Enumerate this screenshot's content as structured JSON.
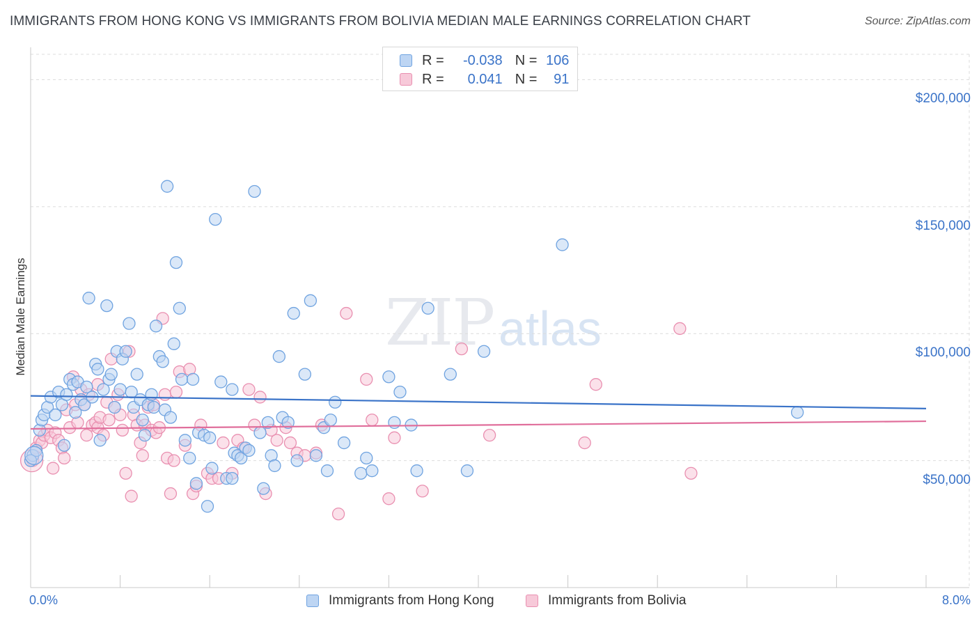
{
  "title": "IMMIGRANTS FROM HONG KONG VS IMMIGRANTS FROM BOLIVIA MEDIAN MALE EARNINGS CORRELATION CHART",
  "source": "Source: ZipAtlas.com",
  "watermark": {
    "zip": "ZIP",
    "atlas": "atlas"
  },
  "legend": {
    "rows": [
      {
        "r_label": "R =",
        "r_value": "-0.038",
        "n_label": "N =",
        "n_value": "106",
        "color": "#6fa3e0",
        "fill": "#bdd5f3"
      },
      {
        "r_label": "R =",
        "r_value": "0.041",
        "n_label": "N =",
        "n_value": "91",
        "color": "#e98fb0",
        "fill": "#f7c9d9"
      }
    ]
  },
  "colors": {
    "blue_line": "#3a73c8",
    "pink_line": "#e06e9b",
    "blue_stroke": "#6fa3e0",
    "blue_fill": "#bdd5f3",
    "pink_stroke": "#e98fb0",
    "pink_fill": "#f7c9d9",
    "grid": "#dcdcdc"
  },
  "chart_data": {
    "type": "scatter",
    "title": "IMMIGRANTS FROM HONG KONG VS IMMIGRANTS FROM BOLIVIA MEDIAN MALE EARNINGS CORRELATION CHART",
    "xlabel": "",
    "ylabel": "Median Male Earnings",
    "xlim": [
      0,
      8
    ],
    "ylim": [
      0,
      210000
    ],
    "x_tick_labels": [
      "0.0%",
      "8.0%"
    ],
    "y_tick_labels": [
      "$50,000",
      "$100,000",
      "$150,000",
      "$200,000"
    ],
    "y_ticks": [
      50000,
      100000,
      150000,
      200000
    ],
    "grid": true,
    "legend_position": "top-center",
    "series": [
      {
        "name": "Immigrants from Hong Kong",
        "trend": {
          "x": [
            0,
            8
          ],
          "y": [
            75500,
            70500
          ]
        },
        "points": [
          [
            0.02,
            52000
          ],
          [
            0.05,
            54000
          ],
          [
            0.08,
            62000
          ],
          [
            0.1,
            66000
          ],
          [
            0.12,
            68000
          ],
          [
            0.15,
            71000
          ],
          [
            0.18,
            75000
          ],
          [
            0.22,
            68000
          ],
          [
            0.25,
            77000
          ],
          [
            0.28,
            72000
          ],
          [
            0.3,
            56000
          ],
          [
            0.32,
            76000
          ],
          [
            0.35,
            82000
          ],
          [
            0.38,
            80000
          ],
          [
            0.4,
            69000
          ],
          [
            0.42,
            81000
          ],
          [
            0.45,
            74000
          ],
          [
            0.48,
            72000
          ],
          [
            0.5,
            79000
          ],
          [
            0.52,
            114000
          ],
          [
            0.55,
            75000
          ],
          [
            0.58,
            88000
          ],
          [
            0.6,
            86000
          ],
          [
            0.62,
            58000
          ],
          [
            0.65,
            78000
          ],
          [
            0.68,
            111000
          ],
          [
            0.7,
            82000
          ],
          [
            0.72,
            84000
          ],
          [
            0.75,
            71000
          ],
          [
            0.77,
            93000
          ],
          [
            0.8,
            78000
          ],
          [
            0.82,
            90000
          ],
          [
            0.85,
            93000
          ],
          [
            0.88,
            104000
          ],
          [
            0.9,
            77000
          ],
          [
            0.92,
            71000
          ],
          [
            0.95,
            84000
          ],
          [
            0.98,
            74000
          ],
          [
            1.0,
            66000
          ],
          [
            1.02,
            60000
          ],
          [
            1.05,
            72000
          ],
          [
            1.08,
            76000
          ],
          [
            1.1,
            71000
          ],
          [
            1.12,
            103000
          ],
          [
            1.15,
            91000
          ],
          [
            1.18,
            89000
          ],
          [
            1.2,
            70000
          ],
          [
            1.22,
            158000
          ],
          [
            1.25,
            67000
          ],
          [
            1.28,
            96000
          ],
          [
            1.3,
            128000
          ],
          [
            1.33,
            110000
          ],
          [
            1.35,
            82000
          ],
          [
            1.38,
            58000
          ],
          [
            1.42,
            51000
          ],
          [
            1.45,
            82000
          ],
          [
            1.48,
            41000
          ],
          [
            1.5,
            61000
          ],
          [
            1.55,
            60000
          ],
          [
            1.58,
            32000
          ],
          [
            1.6,
            59000
          ],
          [
            1.62,
            47000
          ],
          [
            1.65,
            145000
          ],
          [
            1.7,
            81000
          ],
          [
            1.75,
            43000
          ],
          [
            1.8,
            78000
          ],
          [
            1.82,
            53000
          ],
          [
            1.85,
            52000
          ],
          [
            1.88,
            51000
          ],
          [
            1.92,
            55000
          ],
          [
            1.95,
            54000
          ],
          [
            2.0,
            156000
          ],
          [
            2.05,
            61000
          ],
          [
            2.08,
            39000
          ],
          [
            2.12,
            65000
          ],
          [
            2.15,
            52000
          ],
          [
            2.18,
            48000
          ],
          [
            2.22,
            91000
          ],
          [
            2.25,
            67000
          ],
          [
            2.3,
            65000
          ],
          [
            2.35,
            108000
          ],
          [
            2.38,
            50000
          ],
          [
            2.45,
            84000
          ],
          [
            2.5,
            113000
          ],
          [
            2.55,
            52000
          ],
          [
            2.62,
            63000
          ],
          [
            2.65,
            46000
          ],
          [
            2.68,
            66000
          ],
          [
            2.72,
            73000
          ],
          [
            2.8,
            57000
          ],
          [
            2.95,
            45000
          ],
          [
            3.0,
            51000
          ],
          [
            3.05,
            46000
          ],
          [
            3.2,
            83000
          ],
          [
            3.25,
            65000
          ],
          [
            3.3,
            77000
          ],
          [
            3.4,
            64000
          ],
          [
            3.45,
            46000
          ],
          [
            3.55,
            110000
          ],
          [
            3.75,
            84000
          ],
          [
            3.9,
            46000
          ],
          [
            4.05,
            93000
          ],
          [
            4.75,
            135000
          ],
          [
            6.85,
            69000
          ],
          [
            0.0,
            50000
          ],
          [
            1.8,
            43000
          ]
        ]
      },
      {
        "name": "Immigrants from Bolivia",
        "trend": {
          "x": [
            0,
            8
          ],
          "y": [
            62500,
            65500
          ]
        },
        "points": [
          [
            0.02,
            50000
          ],
          [
            0.05,
            55000
          ],
          [
            0.08,
            58000
          ],
          [
            0.1,
            57000
          ],
          [
            0.12,
            60000
          ],
          [
            0.15,
            62000
          ],
          [
            0.18,
            59000
          ],
          [
            0.2,
            47000
          ],
          [
            0.22,
            61000
          ],
          [
            0.25,
            58000
          ],
          [
            0.28,
            55000
          ],
          [
            0.3,
            51000
          ],
          [
            0.32,
            70000
          ],
          [
            0.35,
            63000
          ],
          [
            0.38,
            83000
          ],
          [
            0.4,
            72000
          ],
          [
            0.42,
            65000
          ],
          [
            0.45,
            78000
          ],
          [
            0.48,
            72000
          ],
          [
            0.5,
            60000
          ],
          [
            0.52,
            76000
          ],
          [
            0.55,
            64000
          ],
          [
            0.58,
            65000
          ],
          [
            0.6,
            63000
          ],
          [
            0.62,
            67000
          ],
          [
            0.65,
            60000
          ],
          [
            0.68,
            73000
          ],
          [
            0.7,
            66000
          ],
          [
            0.72,
            90000
          ],
          [
            0.75,
            71000
          ],
          [
            0.78,
            76000
          ],
          [
            0.8,
            68000
          ],
          [
            0.82,
            62000
          ],
          [
            0.85,
            45000
          ],
          [
            0.88,
            93000
          ],
          [
            0.9,
            36000
          ],
          [
            0.92,
            68000
          ],
          [
            0.95,
            64000
          ],
          [
            0.98,
            57000
          ],
          [
            1.0,
            52000
          ],
          [
            1.02,
            64000
          ],
          [
            1.05,
            71000
          ],
          [
            1.08,
            62000
          ],
          [
            1.1,
            72000
          ],
          [
            1.12,
            61000
          ],
          [
            1.15,
            63000
          ],
          [
            1.18,
            106000
          ],
          [
            1.2,
            76000
          ],
          [
            1.22,
            51000
          ],
          [
            1.25,
            37000
          ],
          [
            1.28,
            50000
          ],
          [
            1.3,
            77000
          ],
          [
            1.33,
            85000
          ],
          [
            1.38,
            56000
          ],
          [
            1.42,
            86000
          ],
          [
            1.45,
            37000
          ],
          [
            1.48,
            40000
          ],
          [
            1.52,
            64000
          ],
          [
            1.58,
            45000
          ],
          [
            1.62,
            43000
          ],
          [
            1.68,
            43000
          ],
          [
            1.72,
            57000
          ],
          [
            1.8,
            45000
          ],
          [
            1.85,
            58000
          ],
          [
            1.9,
            55000
          ],
          [
            1.95,
            78000
          ],
          [
            2.0,
            64000
          ],
          [
            2.05,
            75000
          ],
          [
            2.1,
            37000
          ],
          [
            2.15,
            62000
          ],
          [
            2.2,
            58000
          ],
          [
            2.28,
            63000
          ],
          [
            2.32,
            57000
          ],
          [
            2.38,
            53000
          ],
          [
            2.45,
            52000
          ],
          [
            2.6,
            64000
          ],
          [
            2.75,
            29000
          ],
          [
            2.82,
            108000
          ],
          [
            3.0,
            82000
          ],
          [
            3.05,
            66000
          ],
          [
            3.2,
            35000
          ],
          [
            3.25,
            59000
          ],
          [
            3.5,
            38000
          ],
          [
            3.85,
            94000
          ],
          [
            4.1,
            60000
          ],
          [
            4.95,
            57000
          ],
          [
            5.05,
            80000
          ],
          [
            5.8,
            102000
          ],
          [
            5.9,
            45000
          ],
          [
            0.6,
            80000
          ],
          [
            2.55,
            53000
          ]
        ]
      }
    ]
  },
  "x_axis": {
    "min_label": "0.0%",
    "max_label": "8.0%"
  },
  "bottom_legend": [
    {
      "label": "Immigrants from Hong Kong"
    },
    {
      "label": "Immigrants from Bolivia"
    }
  ]
}
